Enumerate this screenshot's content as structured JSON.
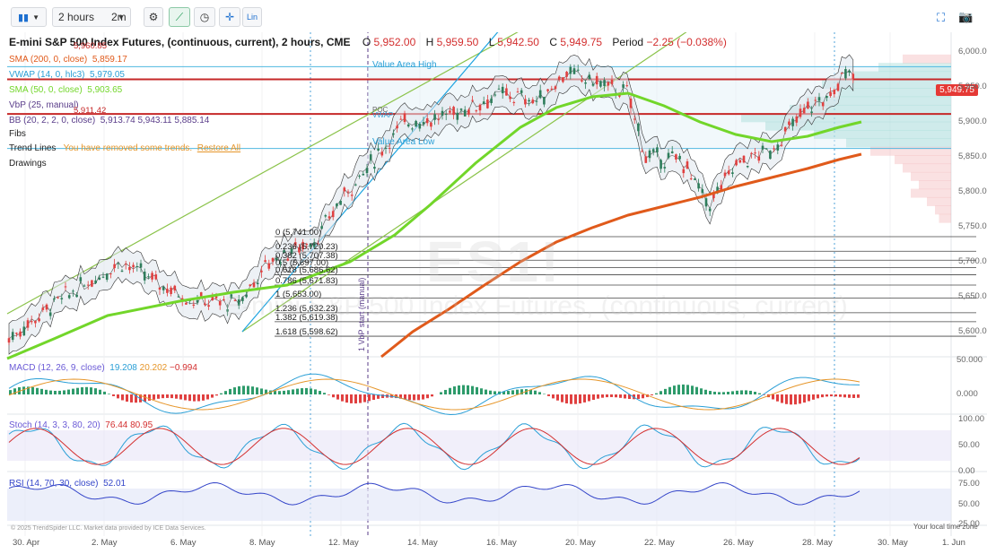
{
  "toolbar": {
    "interval_label": "2 hours",
    "range_label": "2m",
    "crosshair_label": "Lin"
  },
  "header": {
    "title": "E-mini S&P 500 Index Futures, (continuous, current), 2 hours, CME",
    "ohlc": {
      "o_label": "O",
      "o": "5,952.00",
      "h_label": "H",
      "h": "5,959.50",
      "l_label": "L",
      "l": "5,942.50",
      "c_label": "C",
      "c": "5,949.75",
      "period_label": "Period",
      "period": "−2.25 (−0.038%)"
    }
  },
  "studies": {
    "sma200": {
      "label": "SMA (200, 0, close)",
      "value": "5,859.17",
      "color": "#e05a1b"
    },
    "vwap": {
      "label": "VWAP (14, 0, hlc3)",
      "value": "5,979.05",
      "color": "#2a9fd6"
    },
    "sma50": {
      "label": "SMA (50, 0, close)",
      "value": "5,903.65",
      "color": "#72d62a"
    },
    "vbp": {
      "label": "VbP (25, manual)"
    },
    "bb": {
      "label": "BB (20, 2, 2, 0, close)",
      "value": "5,913.74  5,943.11  5,885.14"
    },
    "fibs": {
      "label": "Fibs"
    },
    "trend_lines": {
      "label": "Trend Lines",
      "removed_msg": "You have removed some trends.",
      "restore": "Restore All"
    },
    "drawings": {
      "label": "Drawings"
    }
  },
  "annotations": {
    "value_area_high": "Value Area High",
    "value_area_low": "Value Area Low",
    "poc": "POC",
    "vwap_tag": "VWAP",
    "vbp_start": "1 VbP start (manual)",
    "level_label_1": "5,960.85",
    "level_label_2": "5,911.42",
    "watermark": "ES1!",
    "watermark2": "E-mini S&P 500 Index Futures, (continuous, current)"
  },
  "price_axis": {
    "ticks": [
      "6,000.00",
      "5,950.00",
      "5,900.00",
      "5,850.00",
      "5,800.00",
      "5,750.00",
      "5,700.00",
      "5,650.00",
      "5,600.00"
    ],
    "current_price": "5,949.75",
    "current_price_color": "#e53935"
  },
  "fibs_upper": [
    "0 (5,741.00)",
    "0.236 (5,720.23)",
    "0.382 (5,707.38)",
    "0.5 (5,697.00)",
    "0.618 (5,686.62)",
    "0.786 (5,671.83)",
    "1 (5,653.00)",
    "1.236 (5,632.23)",
    "1.382 (5,619.38)",
    "1.618 (5,598.62)"
  ],
  "macd": {
    "label": "MACD (12, 26, 9, close)",
    "v1": "19.208",
    "v2": "20.202",
    "v3": "−0.994",
    "ticks": [
      "50.000",
      "0.000"
    ]
  },
  "stoch": {
    "label": "Stoch (14, 3, 3, 80, 20)",
    "v1": "76.44",
    "v2": "80.95",
    "ticks": [
      "100.00",
      "50.00",
      "0.00"
    ]
  },
  "rsi": {
    "label": "RSI (14, 70, 30, close)",
    "value": "52.01",
    "ticks": [
      "75.00",
      "50.00",
      "25.00"
    ]
  },
  "dates": [
    "30. Apr",
    "2. May",
    "6. May",
    "8. May",
    "12. May",
    "14. May",
    "16. May",
    "20. May",
    "22. May",
    "26. May",
    "28. May",
    "30. May",
    "1. Jun"
  ],
  "footer": {
    "copyright": "© 2025 TrendSpider LLC. Market data provided by ICE Data Services.",
    "local_time": "Your local time zone"
  }
}
